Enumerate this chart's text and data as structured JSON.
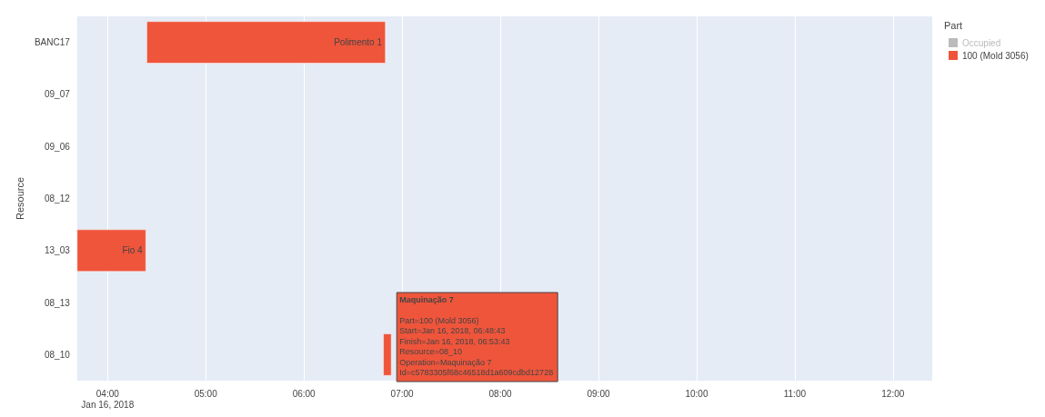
{
  "chart_data": {
    "type": "bar",
    "orientation": "horizontal",
    "ylabel": "Resource",
    "legend_title": "Part",
    "legend": "top right",
    "grid": "x",
    "categories": [
      "BANC17",
      "09_07",
      "09_06",
      "08_12",
      "13_03",
      "08_13",
      "08_10"
    ],
    "series": [
      {
        "name": "Occupied",
        "color": "#bebebe",
        "values": [
          null,
          null,
          null,
          null,
          null,
          null,
          null
        ]
      },
      {
        "name": "100 (Mold 3056)",
        "color": "#ef553b",
        "values": [
          2.43,
          null,
          null,
          null,
          0.7,
          null,
          0.08
        ],
        "base": [
          4.4,
          null,
          null,
          null,
          3.69,
          null,
          6.81
        ],
        "value_labels": [
          "Polimento 1",
          null,
          null,
          null,
          "Fio 4",
          null,
          null
        ]
      }
    ],
    "xlim": [
      3.69,
      12.4
    ],
    "xticks": [
      {
        "value": 4,
        "label": "04:00\nJan 16, 2018"
      },
      {
        "value": 5,
        "label": "05:00"
      },
      {
        "value": 6,
        "label": "06:00"
      },
      {
        "value": 7,
        "label": "07:00"
      },
      {
        "value": 8,
        "label": "08:00"
      },
      {
        "value": 9,
        "label": "09:00"
      },
      {
        "value": 10,
        "label": "10:00"
      },
      {
        "value": 11,
        "label": "11:00"
      },
      {
        "value": 12,
        "label": "12:00"
      }
    ],
    "annotations": [
      "Maquinação 7",
      "Part=100 (Mold 3056)",
      "Start=Jan 16, 2018, 06:48:43",
      "Finish=Jan 16, 2018, 06:53:43",
      "Resource=08_10",
      "Operation=Maquinação 7",
      "Id=c5783305f68c46518d1a609cdbd12728"
    ]
  }
}
